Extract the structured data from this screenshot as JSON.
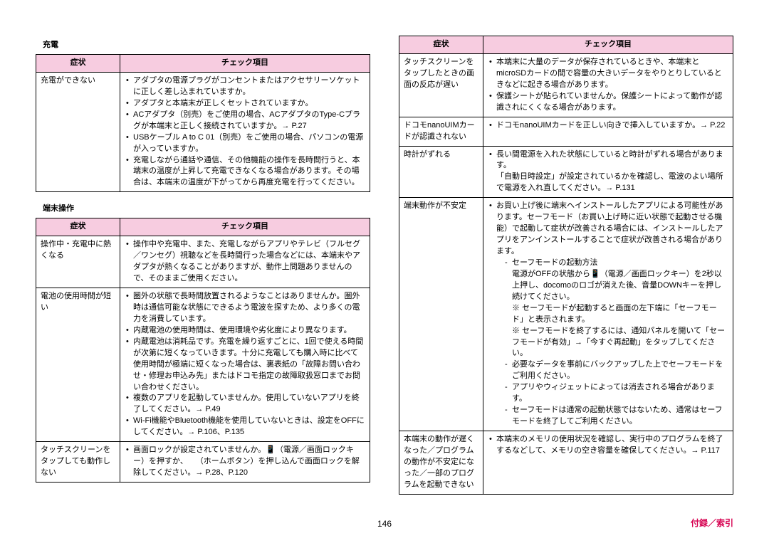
{
  "header_cols": {
    "symptom": "症状",
    "check": "チェック項目"
  },
  "sections": {
    "charging": {
      "title": "充電"
    },
    "terminal": {
      "title": "端末操作"
    }
  },
  "charging_rows": [
    {
      "symptom": "充電ができない",
      "checks": [
        "アダプタの電源プラグがコンセントまたはアクセサリーソケットに正しく差し込まれていますか。",
        "アダプタと本端末が正しくセットされていますか。",
        "ACアダプタ（別売）をご使用の場合、ACアダプタのType-Cプラグが本端末と正しく接続されていますか。→ P.27",
        "USBケーブル A to C 01（別売）をご使用の場合、パソコンの電源が入っていますか。",
        "充電しながら通話や通信、その他機能の操作を長時間行うと、本端末の温度が上昇して充電できなくなる場合があります。その場合は、本端末の温度が下がってから再度充電を行ってください。"
      ]
    }
  ],
  "terminal_rows_left": [
    {
      "symptom": "操作中・充電中に熱くなる",
      "checks": [
        "操作中や充電中、また、充電しながらアプリやテレビ（フルセグ／ワンセグ）視聴などを長時間行った場合などには、本端末やアダプタが熱くなることがありますが、動作上問題ありませんので、そのままご使用ください。"
      ]
    },
    {
      "symptom": "電池の使用時間が短い",
      "checks": [
        "圏外の状態で長時間放置されるようなことはありませんか。圏外時は通信可能な状態にできるよう電波を探すため、より多くの電力を消費しています。",
        "内蔵電池の使用時間は、使用環境や劣化度により異なります。",
        "内蔵電池は消耗品です。充電を繰り返すごとに、1回で使える時間が次第に短くなっていきます。十分に充電しても購入時に比べて使用時間が極端に短くなった場合は、裏表紙の「故障お問い合わせ・修理お申込み先」またはドコモ指定の故障取扱窓口までお問い合わせください。",
        "複数のアプリを起動していませんか。使用していないアプリを終了してください。→ P.49",
        "Wi-Fi機能やBluetooth機能を使用していないときは、設定をOFFにしてください。→ P.106、P.135"
      ]
    },
    {
      "symptom": "タッチスクリーンをタップしても動作しない",
      "checks": [
        "画面ロックが設定されていませんか。📱（電源／画面ロックキー）を押すか、　　（ホームボタン）を押し込んで画面ロックを解除してください。→ P.28、P.120"
      ]
    }
  ],
  "terminal_rows_right": [
    {
      "symptom": "タッチスクリーンをタップしたときの画面の反応が遅い",
      "checks": [
        "本端末に大量のデータが保存されているときや、本端末とmicroSDカードの間で容量の大きいデータをやりとりしているときなどに起きる場合があります。",
        "保護シートが貼られていませんか。保護シートによって動作が認識されにくくなる場合があります。"
      ]
    },
    {
      "symptom": "ドコモnanoUIMカードが認識されない",
      "checks": [
        "ドコモnanoUIMカードを正しい向きで挿入していますか。→ P.22"
      ]
    },
    {
      "symptom": "時計がずれる",
      "checks": [
        "長い間電源を入れた状態にしていると時計がずれる場合があります。\n「自動日時設定」が設定されているかを確認し、電波のよい場所で電源を入れ直してください。→ P.131"
      ]
    },
    {
      "symptom": "端末動作が不安定",
      "checks_html": true
    },
    {
      "symptom": "本端末の動作が遅くなった／プログラムの動作が不安定になった／一部のプログラムを起動できない",
      "checks": [
        "本端末のメモリの使用状況を確認し、実行中のプログラムを終了するなどして、メモリの空き容量を確保してください。→ P.117"
      ]
    }
  ],
  "unstable": {
    "main": "お買い上げ後に端末へインストールしたアプリによる可能性があります。セーフモード（お買い上げ時に近い状態で起動させる機能）で起動して症状が改善される場合には、インストールしたアプリをアンインストールすることで症状が改善される場合があります。",
    "sub": [
      "セーフモードの起動方法\n電源がOFFの状態から📱（電源／画面ロックキー）を2秒以上押し、docomoのロゴが消えた後、音量DOWNキーを押し続けてください。\n※ セーフモードが起動すると画面の左下端に「セーフモード」と表示されます。\n※ セーフモードを終了するには、通知パネルを開いて「セーフモードが有効」→「今すぐ再起動」をタップしてください。",
      "必要なデータを事前にバックアップした上でセーフモードをご利用ください。",
      "アプリやウィジェットによっては消去される場合があります。",
      "セーフモードは通常の起動状態ではないため、通常はセーフモードを終了してご利用ください。"
    ]
  },
  "page_number": "146",
  "footer_right": "付録／索引",
  "colors": {
    "header_bg": "#f7cce0",
    "accent": "#d60050"
  }
}
